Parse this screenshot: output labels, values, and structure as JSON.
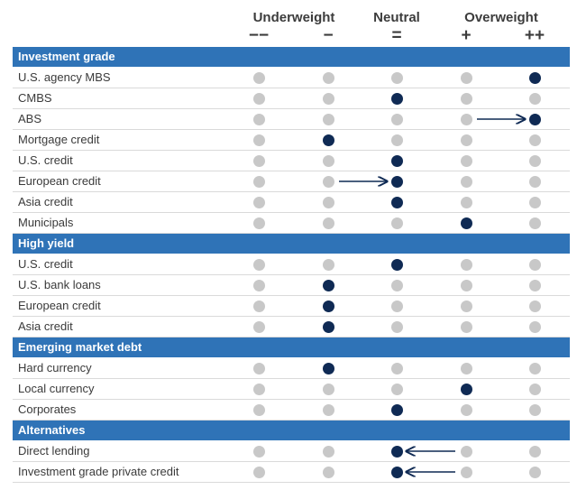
{
  "chart_data": {
    "type": "table",
    "column_groups": [
      {
        "label": "Underweight"
      },
      {
        "label": "Neutral"
      },
      {
        "label": "Overweight"
      }
    ],
    "columns": [
      "−−",
      "−",
      "=",
      "+",
      "++"
    ],
    "colors": {
      "section": "#2f73b7",
      "selected": "#0f2a54",
      "unselected": "#c8c8c8"
    },
    "sections": [
      {
        "title": "Investment grade",
        "rows": [
          {
            "label": "U.S. agency MBS",
            "position": 5
          },
          {
            "label": "CMBS",
            "position": 3
          },
          {
            "label": "ABS",
            "position": 5,
            "moved_from": 4
          },
          {
            "label": "Mortgage credit",
            "position": 2
          },
          {
            "label": "U.S. credit",
            "position": 3
          },
          {
            "label": "European credit",
            "position": 3,
            "moved_from": 2
          },
          {
            "label": "Asia credit",
            "position": 3
          },
          {
            "label": "Municipals",
            "position": 4
          }
        ]
      },
      {
        "title": "High yield",
        "rows": [
          {
            "label": "U.S. credit",
            "position": 3
          },
          {
            "label": "U.S. bank loans",
            "position": 2
          },
          {
            "label": "European credit",
            "position": 2
          },
          {
            "label": "Asia credit",
            "position": 2
          }
        ]
      },
      {
        "title": "Emerging market debt",
        "rows": [
          {
            "label": "Hard currency",
            "position": 2
          },
          {
            "label": "Local currency",
            "position": 4
          },
          {
            "label": "Corporates",
            "position": 3
          }
        ]
      },
      {
        "title": "Alternatives",
        "rows": [
          {
            "label": "Direct lending",
            "position": 3,
            "moved_from": 4
          },
          {
            "label": "Investment grade private credit",
            "position": 3,
            "moved_from": 4
          }
        ]
      }
    ]
  }
}
